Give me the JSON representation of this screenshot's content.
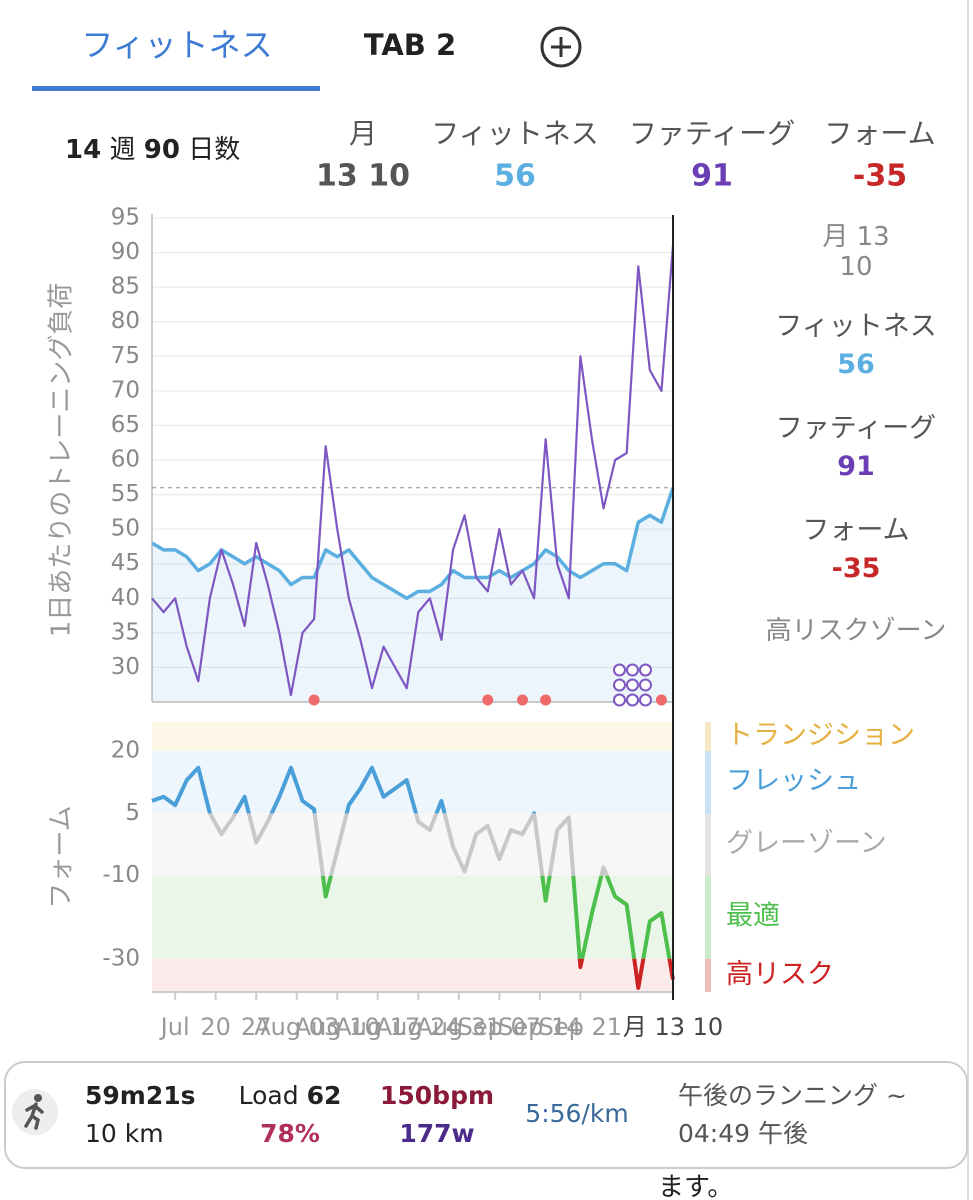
{
  "tabs": {
    "items": [
      "フィットネス",
      "TAB 2"
    ]
  },
  "summary": {
    "weeks": 14,
    "weeks_unit": "週",
    "days": 90,
    "days_unit": "日数"
  },
  "header": {
    "date_label": "月",
    "date": "13 10",
    "fitness": 56,
    "fatigue": 91,
    "form": -35
  },
  "side_panel": {
    "date": "月 13 10",
    "zone": "高リスクゾーン"
  },
  "chart_data": [
    {
      "type": "line",
      "y_label": "1日あたりのトレーニング負荷",
      "x": [
        0,
        2,
        4,
        6,
        8,
        10,
        12,
        14,
        16,
        18,
        20,
        22,
        24,
        26,
        28,
        30,
        32,
        34,
        36,
        38,
        40,
        42,
        44,
        46,
        48,
        50,
        52,
        54,
        56,
        58,
        60,
        62,
        64,
        66,
        68,
        70,
        72,
        74,
        76,
        78,
        80,
        82,
        84,
        86,
        88,
        90
      ],
      "xlim": [
        0,
        90
      ],
      "ylim": [
        25,
        95
      ],
      "yticks": [
        30,
        35,
        40,
        45,
        50,
        55,
        60,
        65,
        70,
        75,
        80,
        85,
        90,
        95
      ],
      "grid": true,
      "series": [
        {
          "name": "フィットネス",
          "color": "#5aafe0",
          "fill": true,
          "values": [
            48,
            47,
            47,
            46,
            44,
            45,
            47,
            46,
            45,
            46,
            45,
            44,
            42,
            43,
            43,
            47,
            46,
            47,
            45,
            43,
            42,
            41,
            40,
            41,
            41,
            42,
            44,
            43,
            43,
            43,
            44,
            43,
            44,
            45,
            47,
            46,
            44,
            43,
            44,
            45,
            45,
            44,
            51,
            52,
            51,
            56
          ]
        },
        {
          "name": "ファティーグ",
          "color": "#7e57c2",
          "values": [
            40,
            38,
            40,
            33,
            28,
            40,
            47,
            42,
            36,
            48,
            42,
            35,
            26,
            35,
            37,
            62,
            50,
            40,
            34,
            27,
            33,
            30,
            27,
            38,
            40,
            34,
            47,
            52,
            43,
            41,
            50,
            42,
            44,
            40,
            63,
            45,
            40,
            75,
            63,
            53,
            60,
            61,
            88,
            73,
            70,
            91
          ]
        }
      ],
      "markers": [
        {
          "x": 28,
          "color": "#ef6a6a"
        },
        {
          "x": 58,
          "color": "#ef6a6a"
        },
        {
          "x": 64,
          "color": "#ef6a6a"
        },
        {
          "x": 68,
          "color": "#ef6a6a"
        },
        {
          "x": 88,
          "color": "#ef6a6a"
        }
      ],
      "cluster": {
        "x": 83,
        "count": 9,
        "color": "#7e57c2"
      }
    },
    {
      "type": "zoned-line",
      "y_label": "フォーム",
      "x": [
        0,
        2,
        4,
        6,
        8,
        10,
        12,
        14,
        16,
        18,
        20,
        22,
        24,
        26,
        28,
        30,
        32,
        34,
        36,
        38,
        40,
        42,
        44,
        46,
        48,
        50,
        52,
        54,
        56,
        58,
        60,
        62,
        64,
        66,
        68,
        70,
        72,
        74,
        76,
        78,
        80,
        82,
        84,
        86,
        88,
        90
      ],
      "xlim": [
        0,
        90
      ],
      "ylim": [
        -38,
        27
      ],
      "yticks": [
        20,
        5,
        -10,
        -30
      ],
      "xticks": [
        {
          "value": 4,
          "label": "Jul"
        },
        {
          "value": 11,
          "label": "20"
        },
        {
          "value": 18,
          "label": "27"
        },
        {
          "value": 25,
          "label": "Aug 03"
        },
        {
          "value": 32,
          "label": "Aug 10"
        },
        {
          "value": 39,
          "label": "Aug 17"
        },
        {
          "value": 46,
          "label": "Aug 24"
        },
        {
          "value": 53,
          "label": "Aug 31"
        },
        {
          "value": 60,
          "label": "Sep 07"
        },
        {
          "value": 67,
          "label": "Sep 14"
        },
        {
          "value": 74,
          "label": "Sep 21"
        },
        {
          "value": 90,
          "label": "月 13 10"
        }
      ],
      "zones": [
        {
          "name": "トランジション",
          "color": "#e6b040",
          "bg": "#fdf7e8",
          "range": [
            20,
            27
          ]
        },
        {
          "name": "フレッシュ",
          "color": "#4a9fd8",
          "bg": "#eef6fd",
          "range": [
            5,
            20
          ]
        },
        {
          "name": "グレーゾーン",
          "color": "#aaaaaa",
          "bg": "#f7f7f7",
          "range": [
            -10,
            5
          ]
        },
        {
          "name": "最適",
          "color": "#4cbf4c",
          "bg": "#eaf7e8",
          "range": [
            -30,
            -10
          ]
        },
        {
          "name": "高リスク",
          "color": "#cc2222",
          "bg": "#fbeaea",
          "range": [
            -38,
            -30
          ]
        }
      ],
      "series": [
        {
          "name": "フォーム",
          "values": [
            8,
            9,
            7,
            13,
            16,
            5,
            0,
            4,
            9,
            -2,
            3,
            9,
            16,
            8,
            6,
            -15,
            -4,
            7,
            11,
            16,
            9,
            11,
            13,
            3,
            1,
            8,
            -3,
            -9,
            0,
            2,
            -6,
            1,
            0,
            5,
            -16,
            1,
            4,
            -32,
            -19,
            -8,
            -15,
            -17,
            -37,
            -21,
            -19,
            -35
          ]
        }
      ]
    }
  ],
  "activity": {
    "duration": "59m21s",
    "distance": "10 km",
    "load_label": "Load",
    "load": 62,
    "load_pct": "78%",
    "heart_rate": "150bpm",
    "power": "177w",
    "pace": "5:56/km",
    "title": "午後のランニング ~",
    "time": "04:49 午後"
  },
  "footer": {
    "text": "ます。"
  }
}
